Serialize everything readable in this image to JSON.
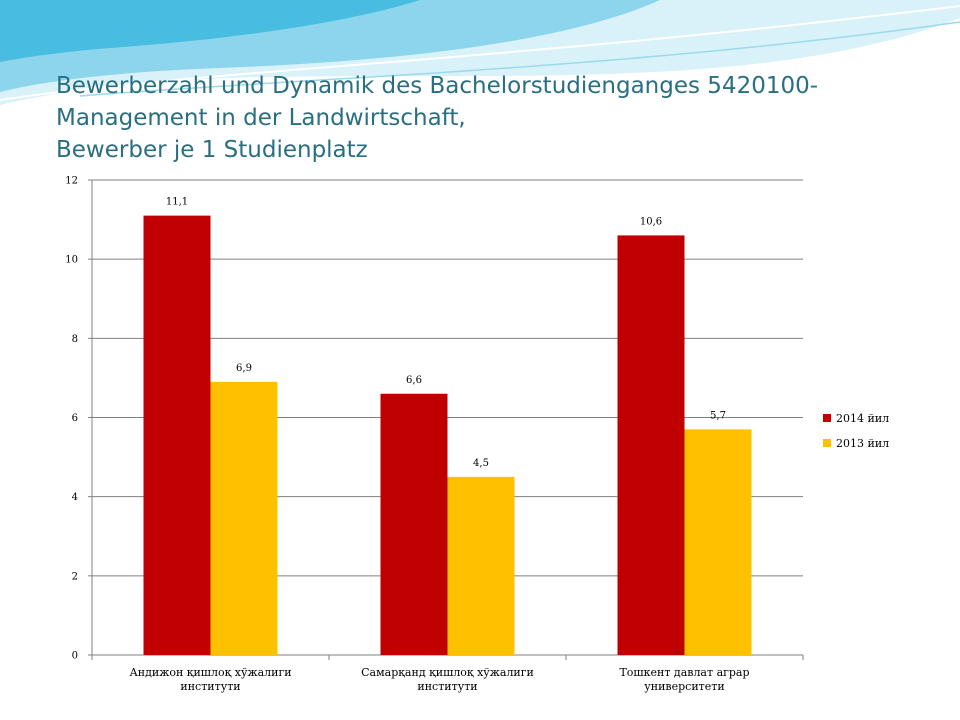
{
  "slide": {
    "title_lines": [
      "Bewerberzahl und Dynamik des Bachelorstudienganges 5420100-",
      "Management in der Landwirtschaft,",
      "Bewerber je 1 Studienplatz"
    ],
    "colors": {
      "title": "#2a6f80",
      "wave_light": "#bfe6f3",
      "wave_mid": "#58c3e3"
    }
  },
  "chart_data": {
    "type": "bar",
    "categories": [
      [
        "Андижон қишлоқ хўжалиги",
        "институти"
      ],
      [
        "Самарқанд қишлоқ хўжалиги",
        "институти"
      ],
      [
        "Тошкент давлат аграр",
        "университети"
      ]
    ],
    "series": [
      {
        "name": "2014 йил",
        "color": "#c00000",
        "values": [
          11.1,
          6.6,
          10.6
        ],
        "labels": [
          "11,1",
          "6,6",
          "10,6"
        ]
      },
      {
        "name": "2013 йил",
        "color": "#ffc000",
        "values": [
          6.9,
          4.5,
          5.7
        ],
        "labels": [
          "6,9",
          "4,5",
          "5,7"
        ]
      }
    ],
    "ylim": [
      0,
      12
    ],
    "yticks": [
      0,
      2,
      4,
      6,
      8,
      10,
      12
    ],
    "grid": true,
    "legend": "right",
    "xlabel": "",
    "ylabel": ""
  }
}
